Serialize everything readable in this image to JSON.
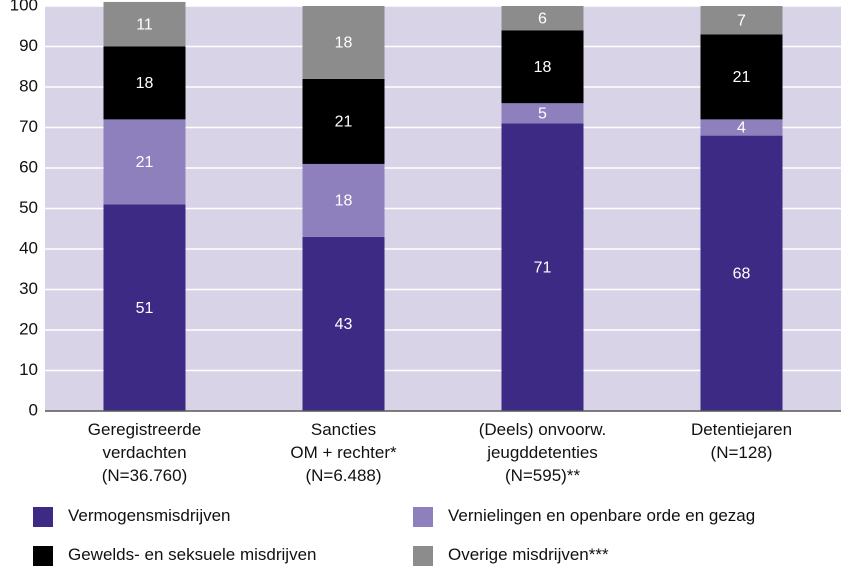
{
  "chart_data": {
    "type": "stacked_bar",
    "categories": [
      "Geregistreerde\nverdachten\n(N=36.760)",
      "Sancties\nOM + rechter*\n(N=6.488)",
      "(Deels) onvoorw.\njeugddetenties\n(N=595)**",
      "Detentiejaren\n(N=128)"
    ],
    "series": [
      {
        "name": "Vermogensmisdrijven",
        "color": "#3d2a84",
        "values": [
          51,
          43,
          71,
          68
        ]
      },
      {
        "name": "Vernielingen en openbare orde en gezag",
        "color": "#8e7fbd",
        "values": [
          21,
          18,
          5,
          4
        ]
      },
      {
        "name": "Gewelds- en seksuele misdrijven",
        "color": "#000000",
        "values": [
          18,
          21,
          18,
          21
        ]
      },
      {
        "name": "Overige misdrijven***",
        "color": "#8c8c8c",
        "values": [
          11,
          18,
          6,
          7
        ]
      }
    ],
    "ylim": [
      0,
      100
    ],
    "yticks": [
      0,
      10,
      20,
      30,
      40,
      50,
      60,
      70,
      80,
      90,
      100
    ],
    "grid": true
  }
}
